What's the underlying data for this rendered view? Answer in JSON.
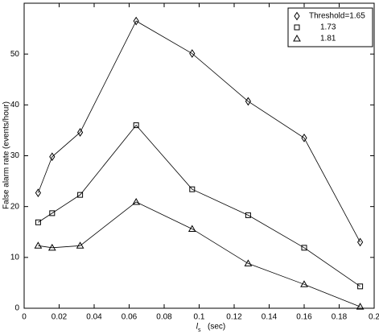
{
  "chart_data": {
    "type": "line",
    "x_label": "l",
    "x_label_subscript": "s",
    "x_label_unit": "(sec)",
    "y_label": "False alarm rate  (events/hour)",
    "x": [
      0.008,
      0.016,
      0.032,
      0.064,
      0.096,
      0.128,
      0.16,
      0.192
    ],
    "series": [
      {
        "name": "Threshold=1.65",
        "color": "#000000",
        "marker": "diamond",
        "values": [
          22.7,
          29.8,
          34.6,
          56.5,
          50.1,
          40.7,
          33.5,
          13.0
        ]
      },
      {
        "name": "1.73",
        "color": "#000000",
        "marker": "square",
        "values": [
          16.9,
          18.7,
          22.3,
          36.0,
          23.4,
          18.3,
          11.9,
          4.3
        ]
      },
      {
        "name": "1.81",
        "color": "#000000",
        "marker": "triangle",
        "values": [
          12.3,
          11.9,
          12.3,
          20.9,
          15.6,
          8.8,
          4.7,
          0.3
        ]
      }
    ],
    "xlim": [
      0,
      0.2
    ],
    "xticks": [
      0,
      0.02,
      0.04,
      0.06,
      0.08,
      0.1,
      0.12,
      0.14,
      0.16,
      0.18,
      0.2
    ],
    "ylim": [
      0,
      60
    ],
    "yticks": [
      0,
      10,
      20,
      30,
      40,
      50
    ],
    "grid": false,
    "legend": "top-right"
  }
}
